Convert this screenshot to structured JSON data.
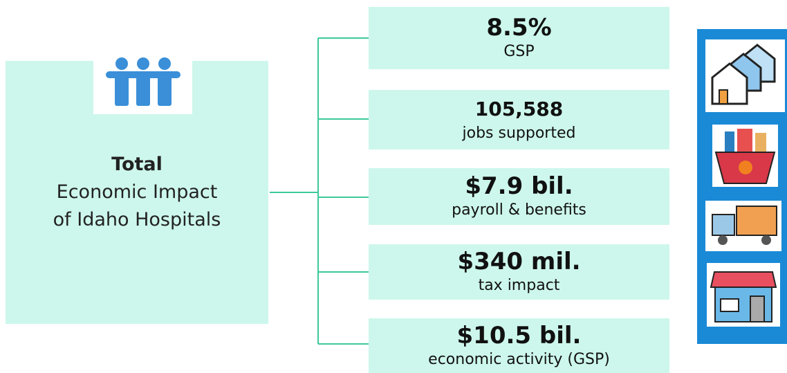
{
  "main": {
    "title": "Total",
    "lines": [
      "Economic Impact",
      "of Idaho Hospitals"
    ]
  },
  "stats": [
    {
      "value": "8.5%",
      "label": "GSP"
    },
    {
      "value": "105,588",
      "label": "jobs supported"
    },
    {
      "value": "$7.9 bil.",
      "label": "payroll & benefits"
    },
    {
      "value": "$340 mil.",
      "label": "tax impact"
    },
    {
      "value": "$10.5 bil.",
      "label": "economic activity (GSP)"
    }
  ]
}
